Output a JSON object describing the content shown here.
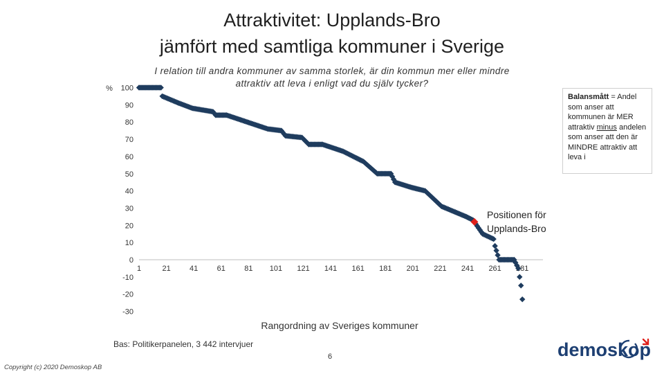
{
  "title_line1": "Attraktivitet: Upplands-Bro",
  "title_line2": "jämfört med samtliga kommuner i Sverige",
  "subtitle_line1": "I relation till andra kommuner av samma storlek, är din kommun mer eller mindre",
  "subtitle_line2": "attraktiv att leva i enligt vad du själv tycker?",
  "note": {
    "bold": "Balansmått",
    "part1": " = Andel som anser att kommunen är MER attraktiv ",
    "underlined": "minus",
    "part2": " andelen som anser att den är MINDRE attraktiv att leva i"
  },
  "footer": {
    "base": "Bas: Politikerpanelen, 3 442 intervjuer",
    "page": "6",
    "copyright": "Copyright (c) 2020 Demoskop AB"
  },
  "logo_text": "demoskop",
  "colors": {
    "marker": "#1f3c5e",
    "highlight": "#e0201b",
    "logo": "#1d3f72",
    "logo_accent": "#e0201b"
  },
  "chart_data": {
    "type": "scatter",
    "title": "",
    "xlabel": "Rangordning av Sveriges kommuner",
    "ylabel": "%",
    "xlim": [
      1,
      291
    ],
    "ylim": [
      -30,
      100
    ],
    "yticks": [
      -30,
      -20,
      -10,
      0,
      10,
      20,
      30,
      40,
      50,
      60,
      70,
      80,
      90,
      100
    ],
    "xticks": [
      1,
      21,
      41,
      61,
      81,
      101,
      121,
      141,
      161,
      181,
      201,
      221,
      241,
      261,
      281
    ],
    "grid": false,
    "series_profile": [
      {
        "rank": 1,
        "value": 100
      },
      {
        "rank": 17,
        "value": 100
      },
      {
        "rank": 18,
        "value": 95
      },
      {
        "rank": 30,
        "value": 91
      },
      {
        "rank": 40,
        "value": 88
      },
      {
        "rank": 55,
        "value": 86
      },
      {
        "rank": 57,
        "value": 84
      },
      {
        "rank": 65,
        "value": 84
      },
      {
        "rank": 80,
        "value": 80
      },
      {
        "rank": 95,
        "value": 76
      },
      {
        "rank": 105,
        "value": 75
      },
      {
        "rank": 108,
        "value": 72
      },
      {
        "rank": 120,
        "value": 71
      },
      {
        "rank": 125,
        "value": 67
      },
      {
        "rank": 135,
        "value": 67
      },
      {
        "rank": 150,
        "value": 63
      },
      {
        "rank": 165,
        "value": 57
      },
      {
        "rank": 175,
        "value": 50
      },
      {
        "rank": 185,
        "value": 50
      },
      {
        "rank": 188,
        "value": 45
      },
      {
        "rank": 200,
        "value": 42
      },
      {
        "rank": 210,
        "value": 40
      },
      {
        "rank": 222,
        "value": 31
      },
      {
        "rank": 240,
        "value": 25
      },
      {
        "rank": 245,
        "value": 23
      },
      {
        "rank": 252,
        "value": 15
      },
      {
        "rank": 260,
        "value": 12
      },
      {
        "rank": 261,
        "value": 8
      },
      {
        "rank": 264,
        "value": 0
      },
      {
        "rank": 275,
        "value": 0
      },
      {
        "rank": 278,
        "value": -5
      },
      {
        "rank": 280,
        "value": -15
      },
      {
        "rank": 281,
        "value": -23
      }
    ],
    "highlight": {
      "rank": 246,
      "value": 22,
      "label_line1": "Positionen för",
      "label_line2": "Upplands-Bro"
    }
  }
}
